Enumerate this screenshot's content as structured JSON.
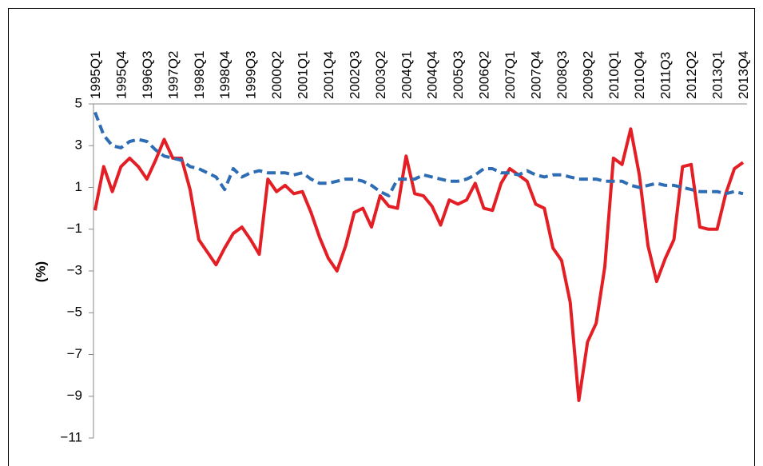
{
  "chart_data": {
    "type": "line",
    "y_label": "(%)",
    "categories": [
      "1995Q1",
      null,
      null,
      "1995Q4",
      null,
      null,
      "1996Q3",
      null,
      null,
      "1997Q2",
      null,
      null,
      "1998Q1",
      null,
      null,
      "1998Q4",
      null,
      null,
      "1999Q3",
      null,
      null,
      "2000Q2",
      null,
      null,
      "2001Q1",
      null,
      null,
      "2001Q4",
      null,
      null,
      "2002Q3",
      null,
      null,
      "2003Q2",
      null,
      null,
      "2004Q1",
      null,
      null,
      "2004Q4",
      null,
      null,
      "2005Q3",
      null,
      null,
      "2006Q2",
      null,
      null,
      "2007Q1",
      null,
      null,
      "2007Q4",
      null,
      null,
      "2008Q3",
      null,
      null,
      "2009Q2",
      null,
      null,
      "2010Q1",
      null,
      null,
      "2010Q4",
      null,
      null,
      "2011Q3",
      null,
      null,
      "2012Q2",
      null,
      null,
      "2013Q1",
      null,
      null,
      "2013Q4"
    ],
    "series": [
      {
        "color": "#e31e24",
        "dashed": false,
        "values": [
          -0.1,
          2.0,
          0.8,
          2.0,
          2.4,
          2.0,
          1.4,
          2.3,
          3.3,
          2.4,
          2.4,
          0.9,
          -1.5,
          -2.1,
          -2.7,
          -1.9,
          -1.2,
          -0.9,
          -1.5,
          -2.2,
          1.4,
          0.8,
          1.1,
          0.7,
          0.8,
          -0.2,
          -1.4,
          -2.4,
          -3.0,
          -1.8,
          -0.2,
          0.0,
          -0.9,
          0.6,
          0.1,
          0.0,
          2.5,
          0.7,
          0.6,
          0.1,
          -0.8,
          0.4,
          0.2,
          0.4,
          1.2,
          0.0,
          -0.1,
          1.2,
          1.9,
          1.6,
          1.3,
          0.2,
          0.0,
          -1.9,
          -2.5,
          -4.5,
          -9.2,
          -6.4,
          -5.5,
          -2.8,
          2.4,
          2.1,
          3.8,
          1.6,
          -1.8,
          -3.5,
          -2.4,
          -1.5,
          2.0,
          2.1,
          -0.9,
          -1.0,
          -1.0,
          0.7,
          1.9,
          2.2
        ]
      },
      {
        "color": "#2e6db4",
        "dashed": true,
        "values": [
          4.6,
          3.5,
          3.0,
          2.9,
          3.2,
          3.3,
          3.2,
          2.8,
          2.5,
          2.4,
          2.3,
          2.0,
          1.9,
          1.7,
          1.5,
          0.9,
          1.9,
          1.5,
          1.7,
          1.8,
          1.7,
          1.7,
          1.7,
          1.6,
          1.7,
          1.4,
          1.2,
          1.2,
          1.3,
          1.4,
          1.4,
          1.3,
          1.1,
          0.8,
          0.6,
          1.4,
          1.4,
          1.4,
          1.6,
          1.5,
          1.4,
          1.3,
          1.3,
          1.4,
          1.6,
          1.9,
          1.9,
          1.7,
          1.7,
          1.6,
          1.8,
          1.6,
          1.5,
          1.6,
          1.6,
          1.5,
          1.4,
          1.4,
          1.4,
          1.3,
          1.3,
          1.3,
          1.1,
          1.0,
          1.1,
          1.2,
          1.1,
          1.1,
          1.0,
          0.9,
          0.8,
          0.8,
          0.8,
          0.7,
          0.8,
          0.7
        ]
      }
    ],
    "ylim": [
      -11,
      5
    ],
    "yticks": [
      5,
      3,
      1,
      {
        "value": -1,
        "label": "−1"
      },
      {
        "value": -3,
        "label": "−3"
      },
      {
        "value": -5,
        "label": "−5"
      },
      {
        "value": -7,
        "label": "−7"
      },
      {
        "value": -9,
        "label": "−9"
      },
      {
        "value": -11,
        "label": "−11"
      }
    ],
    "grid": false
  }
}
